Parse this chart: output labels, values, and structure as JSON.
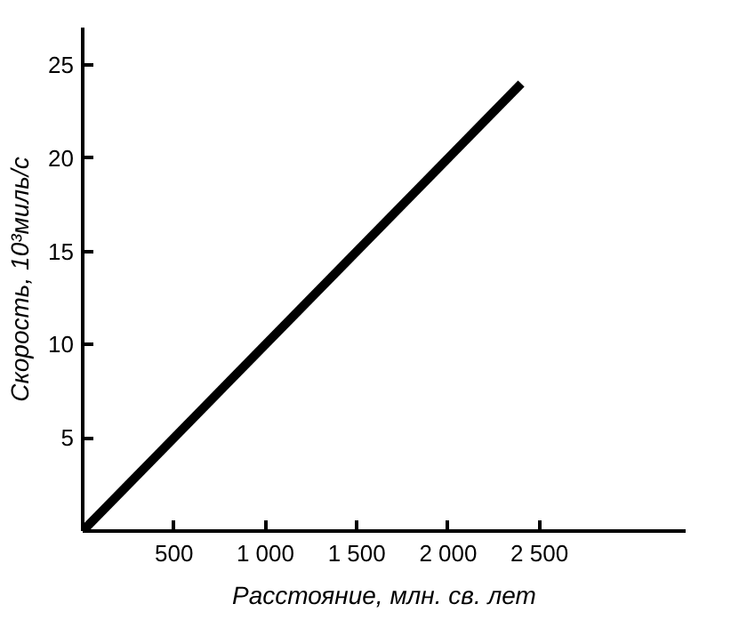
{
  "chart_data": {
    "type": "line",
    "xlabel": "Расстояние, млн. св. лет",
    "ylabel": "Скорость, 10³миль/с",
    "x": [
      0,
      2400
    ],
    "series": [
      {
        "color": "#000000",
        "values": [
          0,
          24
        ]
      }
    ],
    "xlim": [
      0,
      3300
    ],
    "ylim": [
      0,
      27
    ],
    "xticks": [
      500,
      {
        "value": 1000,
        "label": "1 000"
      },
      {
        "value": 1500,
        "label": "1 500"
      },
      {
        "value": 2000,
        "label": "2 000"
      },
      {
        "value": 2500,
        "label": "2 500"
      }
    ],
    "yticks": [
      5,
      10,
      15,
      20,
      25
    ],
    "grid": false,
    "line_style": "solid"
  }
}
